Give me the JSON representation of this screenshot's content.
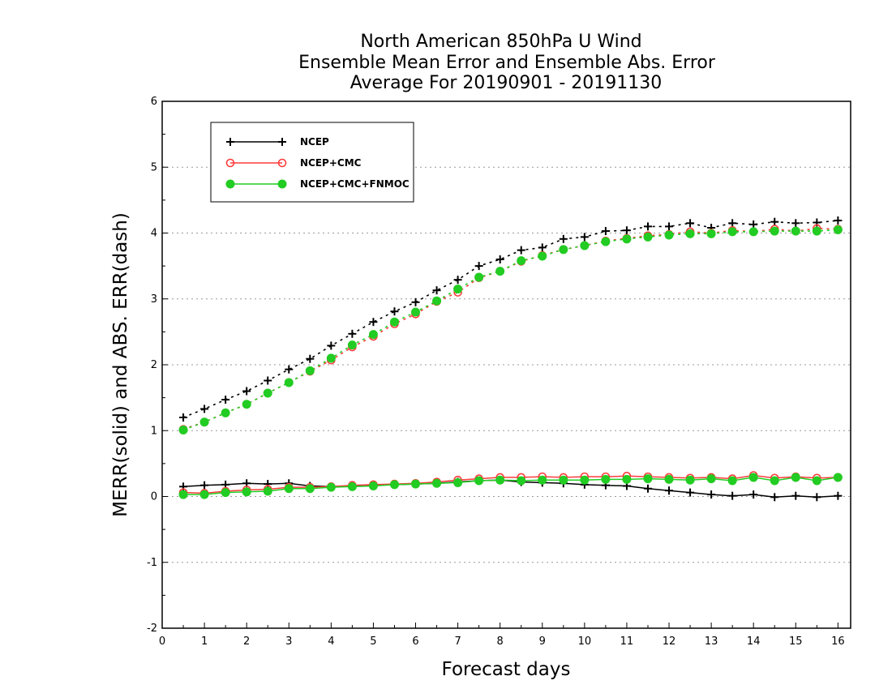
{
  "chart_data": {
    "type": "line",
    "title_lines": [
      "North American 850hPa U Wind",
      "Ensemble Mean Error and Ensemble Abs. Error",
      "Average For 20190901 - 20191130"
    ],
    "xlabel": "Forecast days",
    "ylabel": "MERR(solid) and ABS. ERR(dash)",
    "xlim": [
      0,
      16.3
    ],
    "ylim": [
      -2,
      6
    ],
    "x_ticks": [
      0,
      1,
      2,
      3,
      4,
      5,
      6,
      7,
      8,
      9,
      10,
      11,
      12,
      13,
      14,
      15,
      16
    ],
    "y_ticks": [
      -2,
      -1,
      0,
      1,
      2,
      3,
      4,
      5,
      6
    ],
    "y_tick_labels": [
      "-2",
      "-1",
      "0",
      "1",
      "2",
      "3",
      "4",
      "5",
      "6"
    ],
    "grid": "horizontal dotted",
    "legend_position": "top-left",
    "x": [
      0.5,
      1,
      1.5,
      2,
      2.5,
      3,
      3.5,
      4,
      4.5,
      5,
      5.5,
      6,
      6.5,
      7,
      7.5,
      8,
      8.5,
      9,
      9.5,
      10,
      10.5,
      11,
      11.5,
      12,
      12.5,
      13,
      13.5,
      14,
      14.5,
      15,
      15.5,
      16
    ],
    "series": [
      {
        "name": "NCEP",
        "color": "#000000",
        "marker": "plus",
        "merr": [
          0.15,
          0.17,
          0.18,
          0.2,
          0.19,
          0.2,
          0.16,
          0.15,
          0.16,
          0.18,
          0.18,
          0.19,
          0.2,
          0.22,
          0.24,
          0.25,
          0.22,
          0.21,
          0.2,
          0.18,
          0.17,
          0.16,
          0.12,
          0.09,
          0.06,
          0.03,
          0.01,
          0.03,
          -0.01,
          0.01,
          -0.01,
          0.01
        ],
        "abs_err": [
          1.2,
          1.33,
          1.47,
          1.6,
          1.76,
          1.93,
          2.09,
          2.29,
          2.47,
          2.65,
          2.81,
          2.95,
          3.13,
          3.29,
          3.5,
          3.6,
          3.74,
          3.78,
          3.91,
          3.94,
          4.03,
          4.04,
          4.1,
          4.1,
          4.15,
          4.08,
          4.15,
          4.13,
          4.17,
          4.15,
          4.16,
          4.19
        ]
      },
      {
        "name": "NCEP+CMC",
        "color": "#ff3b3b",
        "marker": "open-circle",
        "merr": [
          0.06,
          0.05,
          0.08,
          0.1,
          0.11,
          0.14,
          0.14,
          0.15,
          0.17,
          0.18,
          0.19,
          0.2,
          0.22,
          0.25,
          0.27,
          0.29,
          0.29,
          0.3,
          0.29,
          0.3,
          0.3,
          0.31,
          0.3,
          0.29,
          0.28,
          0.29,
          0.27,
          0.32,
          0.28,
          0.3,
          0.28,
          0.29
        ],
        "abs_err": [
          1.02,
          1.13,
          1.27,
          1.4,
          1.57,
          1.73,
          1.9,
          2.07,
          2.27,
          2.43,
          2.62,
          2.77,
          2.96,
          3.1,
          3.32,
          3.42,
          3.57,
          3.66,
          3.75,
          3.81,
          3.88,
          3.92,
          3.96,
          3.98,
          4.02,
          4.0,
          4.04,
          4.02,
          4.06,
          4.03,
          4.07,
          4.06
        ]
      },
      {
        "name": "NCEP+CMC+FNMOC",
        "color": "#22cc22",
        "marker": "filled-circle",
        "merr": [
          0.03,
          0.03,
          0.06,
          0.07,
          0.08,
          0.12,
          0.12,
          0.14,
          0.15,
          0.16,
          0.18,
          0.19,
          0.2,
          0.21,
          0.24,
          0.25,
          0.24,
          0.25,
          0.25,
          0.25,
          0.26,
          0.26,
          0.27,
          0.26,
          0.25,
          0.27,
          0.24,
          0.29,
          0.24,
          0.29,
          0.24,
          0.29
        ],
        "abs_err": [
          1.01,
          1.13,
          1.27,
          1.4,
          1.57,
          1.73,
          1.91,
          2.1,
          2.3,
          2.46,
          2.65,
          2.8,
          2.97,
          3.15,
          3.33,
          3.42,
          3.58,
          3.65,
          3.75,
          3.81,
          3.87,
          3.91,
          3.94,
          3.97,
          3.99,
          3.99,
          4.02,
          4.02,
          4.03,
          4.03,
          4.03,
          4.05
        ]
      }
    ]
  }
}
